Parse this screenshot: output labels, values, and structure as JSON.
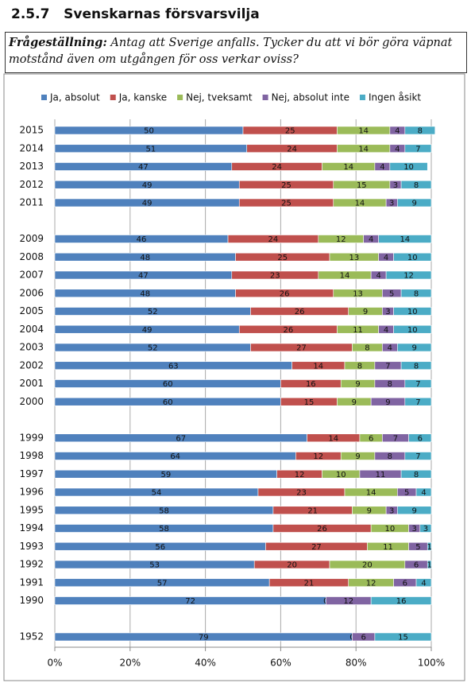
{
  "header": {
    "section": "2.5.7",
    "title": "Svenskarnas försvarsvilja"
  },
  "question": {
    "label": "Frågeställning:",
    "text": "Antag att Sverige anfalls. Tycker du att vi bör göra väpnat motstånd även om utgången för oss verkar oviss?"
  },
  "chart_data": {
    "type": "stacked-barh",
    "categories": [
      "2015",
      "2014",
      "2013",
      "2012",
      "2011",
      null,
      "2009",
      "2008",
      "2007",
      "2006",
      "2005",
      "2004",
      "2003",
      "2002",
      "2001",
      "2000",
      null,
      "1999",
      "1998",
      "1997",
      "1996",
      "1995",
      "1994",
      "1993",
      "1992",
      "1991",
      "1990",
      null,
      "1952"
    ],
    "series": [
      {
        "name": "Ja, absolut",
        "color": "#4f81bd",
        "values": [
          50,
          51,
          47,
          49,
          49,
          null,
          46,
          48,
          47,
          48,
          52,
          49,
          52,
          63,
          60,
          60,
          null,
          67,
          64,
          59,
          54,
          58,
          58,
          56,
          53,
          57,
          72,
          null,
          79
        ]
      },
      {
        "name": "Ja, kanske",
        "color": "#c0504d",
        "values": [
          25,
          24,
          24,
          25,
          25,
          null,
          24,
          25,
          23,
          26,
          26,
          26,
          27,
          14,
          16,
          15,
          null,
          14,
          12,
          12,
          23,
          21,
          26,
          27,
          20,
          21,
          0,
          null,
          0
        ]
      },
      {
        "name": "Nej, tveksamt",
        "color": "#9bbb59",
        "values": [
          14,
          14,
          14,
          15,
          14,
          null,
          12,
          13,
          14,
          13,
          9,
          11,
          8,
          8,
          9,
          9,
          null,
          6,
          9,
          10,
          14,
          9,
          10,
          11,
          20,
          12,
          null,
          null,
          null
        ]
      },
      {
        "name": "Nej, absolut inte",
        "color": "#8064a2",
        "values": [
          4,
          4,
          4,
          3,
          3,
          null,
          4,
          4,
          4,
          5,
          3,
          4,
          4,
          7,
          8,
          9,
          null,
          7,
          8,
          11,
          5,
          3,
          3,
          5,
          6,
          6,
          12,
          null,
          6
        ]
      },
      {
        "name": "Ingen åsikt",
        "color": "#4bacc6",
        "values": [
          8,
          7,
          10,
          8,
          9,
          null,
          14,
          10,
          12,
          8,
          10,
          10,
          9,
          8,
          7,
          7,
          null,
          6,
          7,
          8,
          4,
          9,
          3,
          1,
          1,
          4,
          16,
          null,
          15
        ]
      }
    ],
    "xlim": [
      0,
      100
    ],
    "xticks": [
      {
        "value": 0,
        "label": "0%"
      },
      {
        "value": 20,
        "label": "20%"
      },
      {
        "value": 40,
        "label": "40%"
      },
      {
        "value": 60,
        "label": "60%"
      },
      {
        "value": 80,
        "label": "80%"
      },
      {
        "value": 100,
        "label": "100%"
      }
    ],
    "grid": true,
    "legend": "top"
  }
}
